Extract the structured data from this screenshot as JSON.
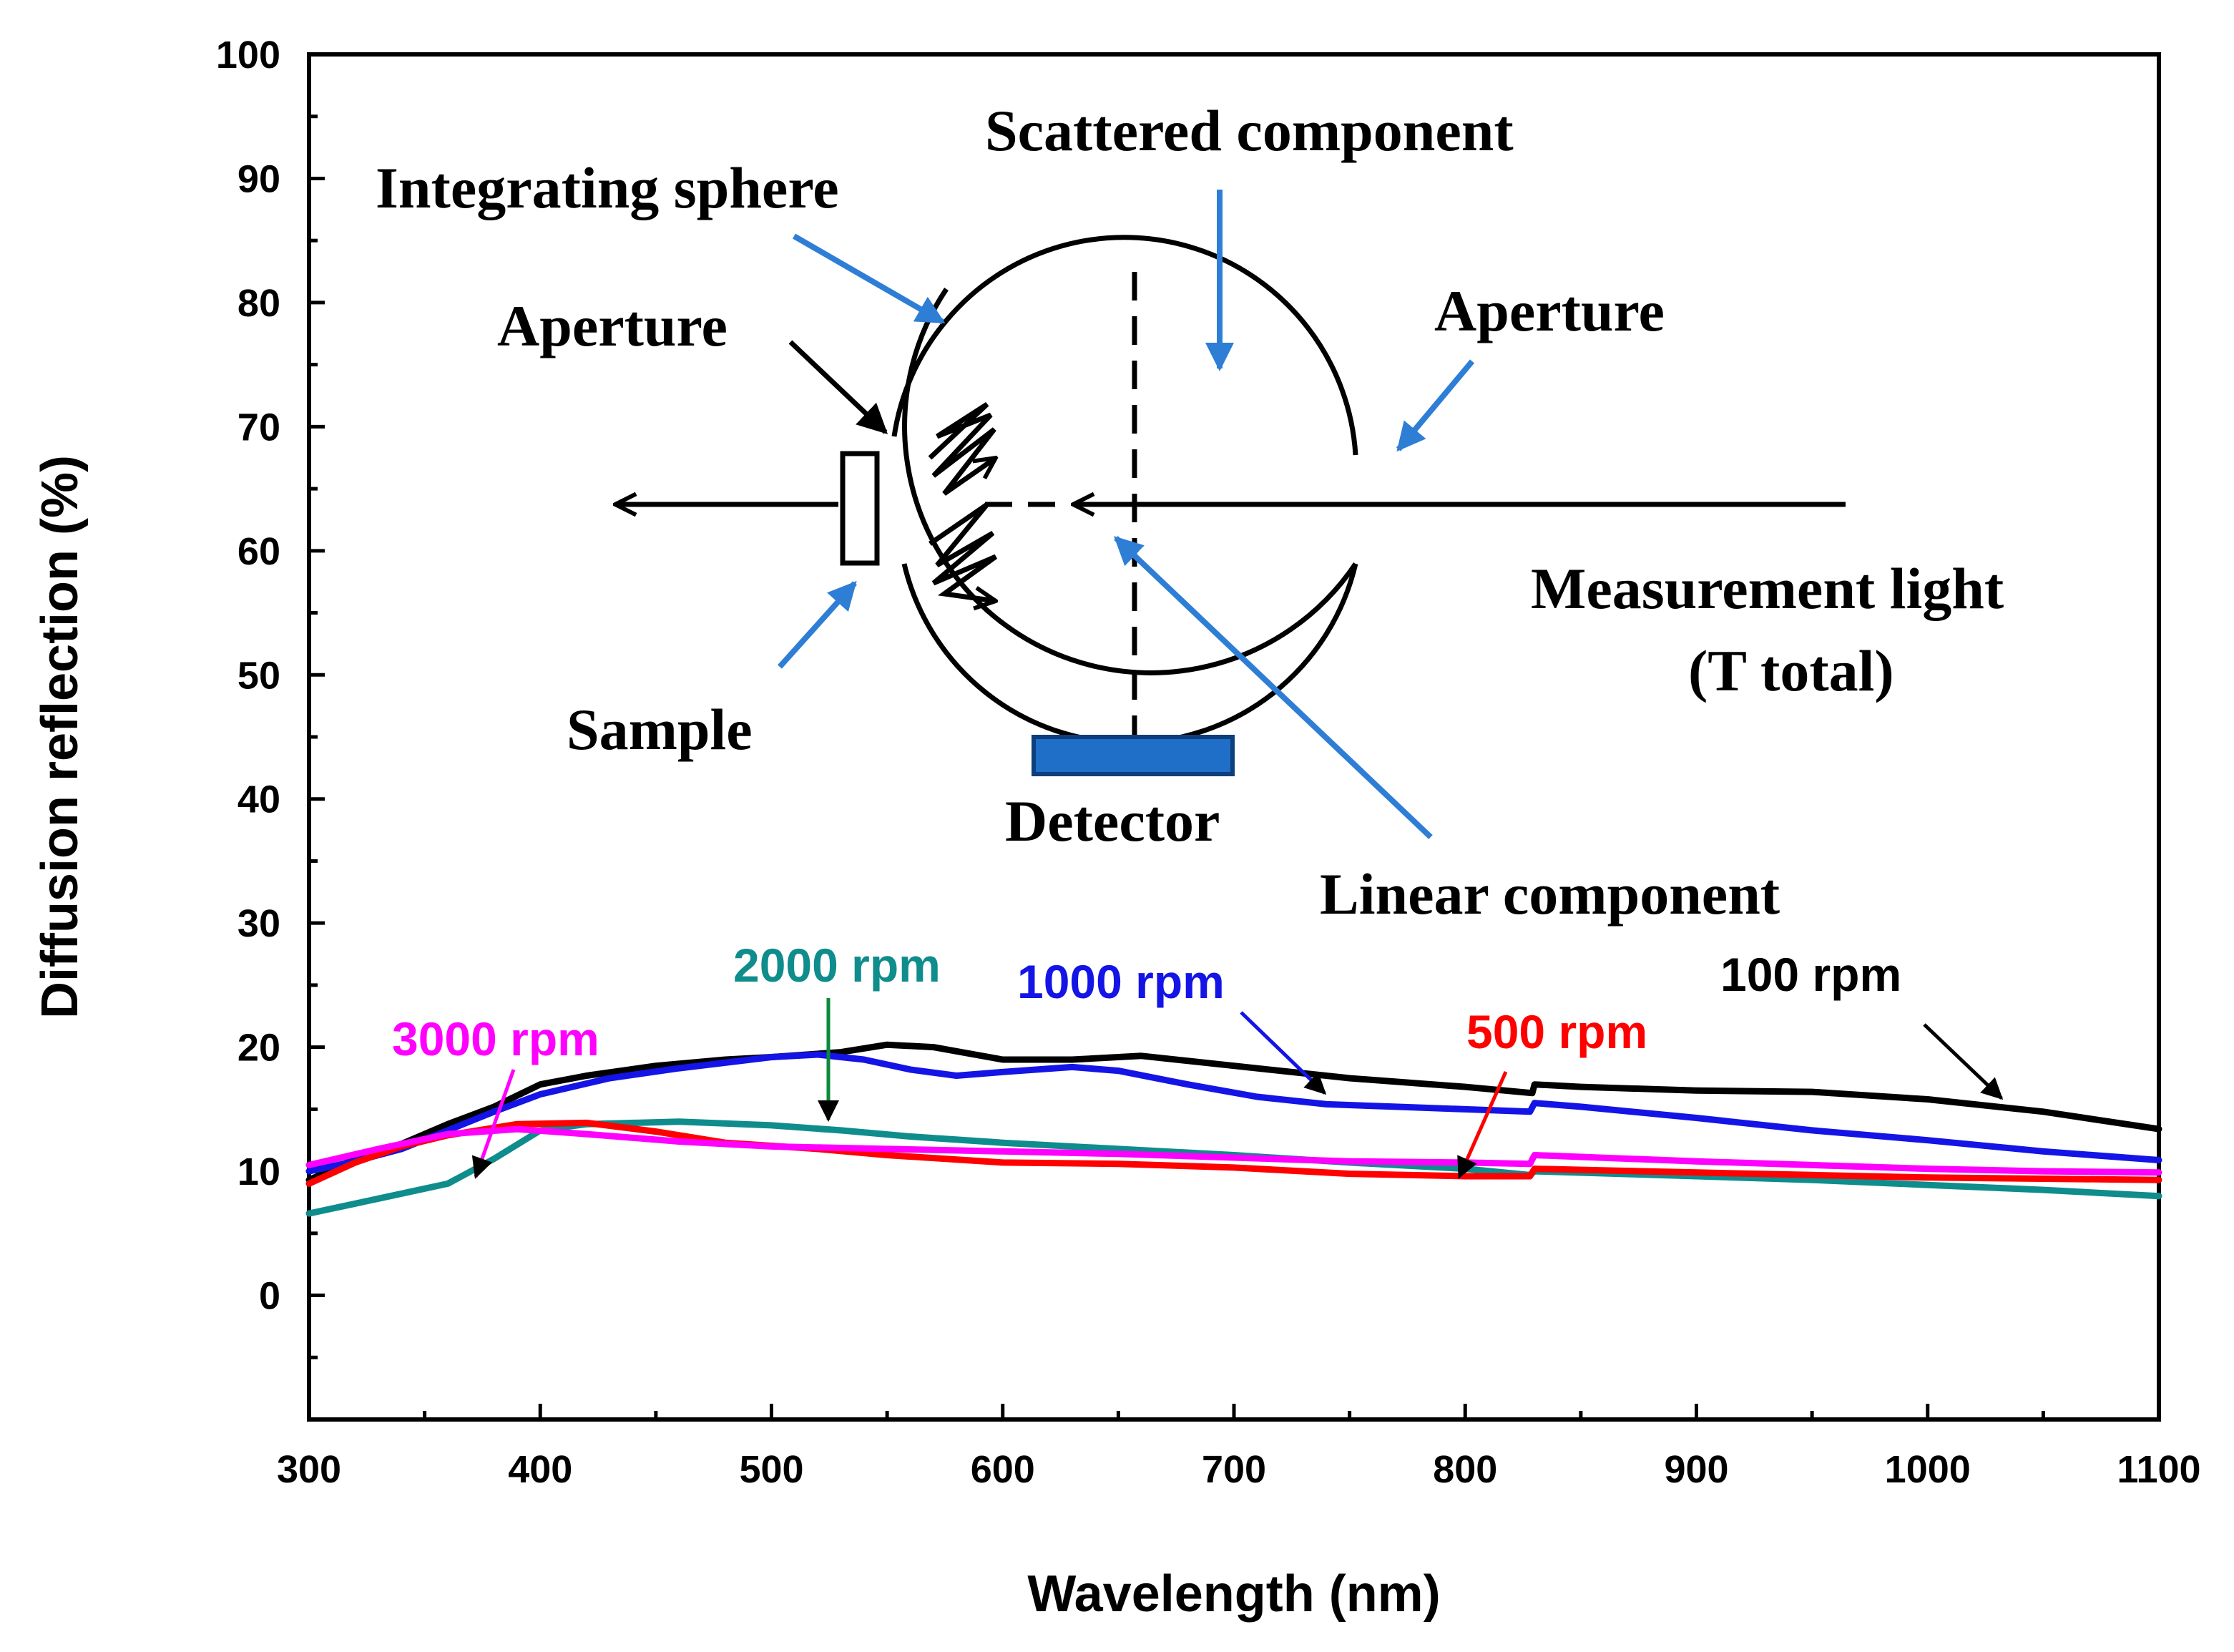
{
  "chart_data": {
    "type": "line",
    "xlabel": "Wavelength (nm)",
    "ylabel": "Diffusion reflection (%)",
    "xlim": [
      300,
      1100
    ],
    "ylim": [
      -10,
      100
    ],
    "xticks": [
      300,
      400,
      500,
      600,
      700,
      800,
      900,
      1000,
      1100
    ],
    "yticks": [
      0,
      10,
      20,
      30,
      40,
      50,
      60,
      70,
      80,
      90,
      100
    ],
    "legend": "inline labels with arrows",
    "series": [
      {
        "name": "100 rpm",
        "label": "100 rpm",
        "color": "#000000",
        "x": [
          300,
          320,
          340,
          360,
          380,
          400,
          420,
          450,
          480,
          500,
          530,
          550,
          570,
          600,
          630,
          660,
          700,
          750,
          800,
          829,
          830,
          850,
          900,
          950,
          1000,
          1050,
          1100
        ],
        "y": [
          9.3,
          11.0,
          12.2,
          13.8,
          15.2,
          17.0,
          17.7,
          18.5,
          19.0,
          19.2,
          19.6,
          20.2,
          20.0,
          19.0,
          19.0,
          19.3,
          18.5,
          17.5,
          16.8,
          16.3,
          17.0,
          16.8,
          16.5,
          16.4,
          15.8,
          14.8,
          13.4
        ]
      },
      {
        "name": "1000 rpm",
        "label": "1000 rpm",
        "color": "#1414e6",
        "x": [
          300,
          320,
          340,
          360,
          380,
          400,
          430,
          460,
          500,
          520,
          540,
          560,
          580,
          600,
          630,
          650,
          680,
          710,
          740,
          770,
          800,
          828,
          830,
          850,
          900,
          950,
          1000,
          1050,
          1100
        ],
        "y": [
          10.0,
          10.8,
          11.8,
          13.3,
          14.8,
          16.2,
          17.5,
          18.3,
          19.2,
          19.4,
          19.0,
          18.2,
          17.7,
          18.0,
          18.4,
          18.1,
          17.0,
          16.0,
          15.4,
          15.2,
          15.0,
          14.8,
          15.5,
          15.2,
          14.3,
          13.3,
          12.5,
          11.6,
          10.9
        ]
      },
      {
        "name": "2000 rpm",
        "label": "2000 rpm",
        "color": "#0f8c8c",
        "x": [
          300,
          330,
          360,
          380,
          400,
          420,
          460,
          500,
          530,
          560,
          600,
          650,
          700,
          750,
          800,
          828,
          830,
          900,
          950,
          1000,
          1050,
          1100
        ],
        "y": [
          6.6,
          7.8,
          9.0,
          11.0,
          13.3,
          13.8,
          14.0,
          13.7,
          13.3,
          12.8,
          12.3,
          11.8,
          11.3,
          10.7,
          10.2,
          9.7,
          10.0,
          9.6,
          9.3,
          8.9,
          8.5,
          8.0
        ]
      },
      {
        "name": "500 rpm",
        "label": "500 rpm",
        "color": "#ff0000",
        "x": [
          300,
          320,
          340,
          360,
          390,
          420,
          450,
          480,
          520,
          550,
          600,
          650,
          700,
          750,
          800,
          828,
          830,
          900,
          950,
          1000,
          1050,
          1100
        ],
        "y": [
          9.0,
          10.7,
          12.0,
          12.9,
          13.8,
          13.9,
          13.2,
          12.3,
          11.8,
          11.3,
          10.7,
          10.6,
          10.3,
          9.8,
          9.6,
          9.6,
          10.2,
          9.9,
          9.7,
          9.5,
          9.4,
          9.3
        ]
      },
      {
        "name": "3000 rpm",
        "label": "3000 rpm",
        "color": "#ff00ff",
        "x": [
          300,
          330,
          360,
          390,
          420,
          460,
          500,
          550,
          600,
          650,
          700,
          750,
          800,
          828,
          830,
          900,
          950,
          1000,
          1050,
          1100
        ],
        "y": [
          10.5,
          11.8,
          13.0,
          13.4,
          13.0,
          12.4,
          12.0,
          11.8,
          11.6,
          11.4,
          11.1,
          10.8,
          10.7,
          10.6,
          11.3,
          10.8,
          10.5,
          10.2,
          10.0,
          9.9
        ]
      }
    ]
  },
  "diagram": {
    "integrating_sphere": "Integrating sphere",
    "scattered_component": "Scattered component",
    "aperture_left": "Aperture",
    "aperture_right": "Aperture",
    "sample": "Sample",
    "detector": "Detector",
    "linear_component": "Linear component",
    "measurement_light_line1": "Measurement light",
    "measurement_light_line2": "(T total)"
  },
  "colors": {
    "annotation_arrow": "#2e7ed6",
    "detector_fill": "#1f6fc8"
  }
}
